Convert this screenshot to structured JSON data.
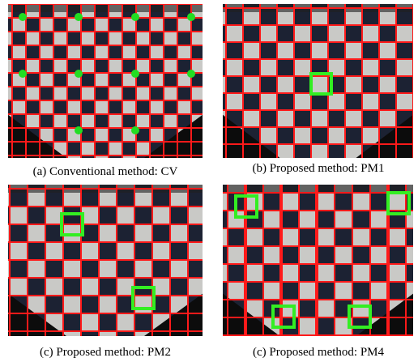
{
  "figure": {
    "captions": [
      "(a) Conventional method: CV",
      "(b) Proposed method: PM1",
      "(c) Proposed method: PM2",
      "(c) Proposed method: PM4"
    ]
  }
}
